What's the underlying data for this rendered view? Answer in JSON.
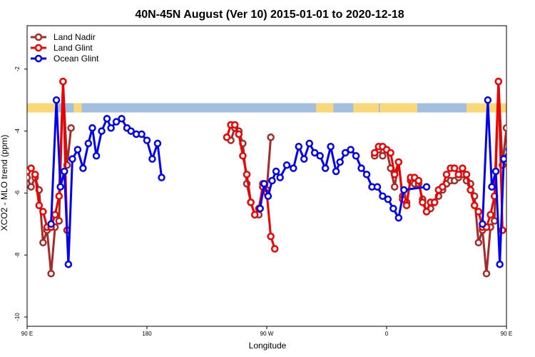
{
  "chart_data": {
    "type": "line",
    "title": "40N-45N August (Ver 10)   2015-01-01 to 2020-12-18",
    "xlabel": "Longitude",
    "ylabel": "XCO2 - MLO trend (ppm)",
    "xlim": [
      90,
      450
    ],
    "ylim": [
      -10.3,
      -0.6
    ],
    "x_ticks": [
      {
        "value": 90,
        "label": "90 E"
      },
      {
        "value": 180,
        "label": "180"
      },
      {
        "value": 270,
        "label": "90 W"
      },
      {
        "value": 360,
        "label": "0"
      },
      {
        "value": 450,
        "label": "90 E"
      },
      {
        "value": 540,
        "label": "180"
      }
    ],
    "y_ticks": [
      {
        "value": -2,
        "label": "-2"
      },
      {
        "value": -4,
        "label": "-4"
      },
      {
        "value": -6,
        "label": "-6"
      },
      {
        "value": -8,
        "label": "-8"
      },
      {
        "value": -10,
        "label": "-10"
      }
    ],
    "legend_position": "top-left",
    "land_ocean_bar": {
      "y_range": [
        -3.4,
        -3.1
      ],
      "ocean_color": "#a3bfe0",
      "land_color": "#f8d878",
      "land_segments": [
        [
          90,
          112
        ],
        [
          125,
          131
        ],
        [
          307,
          320
        ],
        [
          335,
          354
        ],
        [
          355,
          383
        ],
        [
          420,
          452
        ],
        [
          482,
          493
        ],
        [
          502,
          508
        ]
      ]
    },
    "series": [
      {
        "name": "Land Nadir",
        "color": "#a52a2a",
        "segments": [
          [
            [
              90,
              -5.5
            ],
            [
              93,
              -5.8
            ],
            [
              96,
              -5.5
            ],
            [
              99,
              -5.9
            ],
            [
              102,
              -7.6
            ],
            [
              105,
              -7.2
            ],
            [
              108,
              -8.6
            ],
            [
              111,
              -7.1
            ],
            [
              114,
              -6.9
            ],
            [
              117,
              -2.4
            ],
            [
              120,
              -5.1
            ],
            [
              123,
              -3.9
            ]
          ],
          [
            [
              240,
              -4.2
            ],
            [
              243,
              -4.3
            ],
            [
              246,
              -3.9
            ],
            [
              249,
              -4.0
            ],
            [
              252,
              -4.4
            ],
            [
              255,
              -5.7
            ],
            [
              258,
              -6.3
            ],
            [
              261,
              -6.7
            ],
            [
              264,
              -6.7
            ],
            [
              267,
              -5.7
            ],
            [
              270,
              -5.9
            ],
            [
              273,
              -4.2
            ]
          ],
          [
            [
              351,
              -4.8
            ],
            [
              354,
              -4.6
            ],
            [
              357,
              -4.8
            ],
            [
              360,
              -4.6
            ],
            [
              363,
              -5.2
            ],
            [
              366,
              -5.8
            ],
            [
              369,
              -5.0
            ],
            [
              372,
              -6.1
            ],
            [
              375,
              -6.3
            ],
            [
              378,
              -5.6
            ],
            [
              381,
              -5.7
            ],
            [
              384,
              -5.7
            ],
            [
              387,
              -6.2
            ],
            [
              390,
              -6.6
            ],
            [
              393,
              -6.5
            ],
            [
              396,
              -6.3
            ],
            [
              399,
              -6.1
            ],
            [
              402,
              -5.9
            ],
            [
              405,
              -5.7
            ],
            [
              408,
              -5.6
            ],
            [
              411,
              -5.6
            ],
            [
              414,
              -5.5
            ],
            [
              417,
              -5.4
            ],
            [
              420,
              -5.6
            ],
            [
              423,
              -5.7
            ],
            [
              426,
              -6.1
            ],
            [
              429,
              -7.6
            ],
            [
              432,
              -7.2
            ],
            [
              435,
              -8.6
            ],
            [
              438,
              -7.1
            ],
            [
              441,
              -6.9
            ],
            [
              444,
              -2.4
            ],
            [
              447,
              -5.1
            ],
            [
              450,
              -3.9
            ]
          ]
        ]
      },
      {
        "name": "Land Glint",
        "color": "#ee0000",
        "segments": [
          [
            [
              90,
              -5.3
            ],
            [
              93,
              -5.2
            ],
            [
              96,
              -5.4
            ],
            [
              99,
              -6.4
            ],
            [
              102,
              -6.6
            ],
            [
              105,
              -7.1
            ],
            [
              108,
              -7.1
            ],
            [
              111,
              -6.7
            ],
            [
              114,
              -6.1
            ],
            [
              117,
              -2.4
            ],
            [
              120,
              -7.2
            ]
          ],
          [
            [
              240,
              -4.2
            ],
            [
              243,
              -3.8
            ],
            [
              246,
              -3.8
            ],
            [
              249,
              -4.1
            ],
            [
              252,
              -4.8
            ],
            [
              255,
              -5.4
            ],
            [
              258,
              -6.3
            ],
            [
              261,
              -6.7
            ],
            [
              264,
              -6.5
            ],
            [
              267,
              -5.8
            ],
            [
              270,
              -6.0
            ],
            [
              273,
              -7.4
            ],
            [
              276,
              -7.8
            ]
          ],
          [
            [
              351,
              -4.7
            ],
            [
              354,
              -4.5
            ],
            [
              357,
              -4.5
            ],
            [
              360,
              -4.6
            ],
            [
              363,
              -4.7
            ],
            [
              366,
              -5.4
            ],
            [
              369,
              -5.0
            ],
            [
              372,
              -6.2
            ],
            [
              375,
              -6.4
            ],
            [
              378,
              -5.5
            ],
            [
              381,
              -5.5
            ],
            [
              384,
              -5.6
            ],
            [
              387,
              -6.3
            ],
            [
              390,
              -6.6
            ],
            [
              393,
              -6.3
            ],
            [
              396,
              -6.3
            ],
            [
              399,
              -5.9
            ],
            [
              402,
              -5.8
            ],
            [
              405,
              -5.4
            ],
            [
              408,
              -5.2
            ],
            [
              411,
              -5.2
            ],
            [
              414,
              -5.4
            ],
            [
              417,
              -5.2
            ],
            [
              420,
              -5.4
            ],
            [
              423,
              -5.9
            ],
            [
              426,
              -6.4
            ],
            [
              429,
              -6.6
            ],
            [
              432,
              -7.1
            ],
            [
              435,
              -7.1
            ],
            [
              438,
              -6.7
            ],
            [
              441,
              -6.1
            ],
            [
              444,
              -2.4
            ],
            [
              447,
              -7.2
            ]
          ]
        ]
      },
      {
        "name": "Ocean Glint",
        "color": "#0000ee",
        "segments": [
          [
            [
              108,
              -7.0
            ],
            [
              112,
              -3.0
            ],
            [
              115,
              -5.8
            ],
            [
              118,
              -5.3
            ],
            [
              121,
              -8.3
            ],
            [
              124,
              -4.9
            ],
            [
              128,
              -4.6
            ],
            [
              132,
              -5.2
            ],
            [
              136,
              -4.4
            ],
            [
              139,
              -3.9
            ],
            [
              142,
              -4.8
            ],
            [
              146,
              -4.0
            ],
            [
              150,
              -3.6
            ],
            [
              153,
              -3.9
            ],
            [
              157,
              -3.7
            ],
            [
              161,
              -3.6
            ],
            [
              165,
              -3.9
            ],
            [
              168,
              -4.0
            ],
            [
              172,
              -4.1
            ],
            [
              176,
              -4.1
            ],
            [
              180,
              -4.3
            ],
            [
              184,
              -4.9
            ],
            [
              188,
              -4.4
            ],
            [
              191,
              -5.5
            ]
          ],
          [
            [
              265,
              -6.5
            ],
            [
              268,
              -5.7
            ],
            [
              271,
              -6.1
            ],
            [
              274,
              -5.6
            ],
            [
              277,
              -5.3
            ],
            [
              280,
              -5.5
            ],
            [
              285,
              -5.1
            ],
            [
              290,
              -5.2
            ],
            [
              294,
              -4.5
            ],
            [
              298,
              -4.9
            ],
            [
              302,
              -4.4
            ],
            [
              306,
              -4.7
            ],
            [
              310,
              -4.8
            ],
            [
              314,
              -5.2
            ],
            [
              318,
              -4.5
            ],
            [
              322,
              -5.3
            ],
            [
              325,
              -5.0
            ],
            [
              329,
              -4.7
            ],
            [
              333,
              -4.6
            ],
            [
              337,
              -4.8
            ],
            [
              341,
              -5.2
            ],
            [
              345,
              -5.4
            ],
            [
              349,
              -5.8
            ],
            [
              353,
              -5.8
            ],
            [
              357,
              -6.1
            ],
            [
              361,
              -6.2
            ],
            [
              365,
              -6.5
            ],
            [
              369,
              -6.8
            ],
            [
              373,
              -5.9
            ],
            [
              390,
              -5.8
            ]
          ],
          [
            [
              432,
              -7.0
            ],
            [
              436,
              -3.0
            ],
            [
              439,
              -5.8
            ],
            [
              442,
              -5.3
            ],
            [
              445,
              -8.3
            ],
            [
              448,
              -4.9
            ],
            [
              452,
              -4.6
            ],
            [
              456,
              -5.2
            ],
            [
              460,
              -4.4
            ],
            [
              463,
              -3.9
            ],
            [
              466,
              -4.8
            ],
            [
              470,
              -4.0
            ]
          ]
        ]
      }
    ]
  }
}
